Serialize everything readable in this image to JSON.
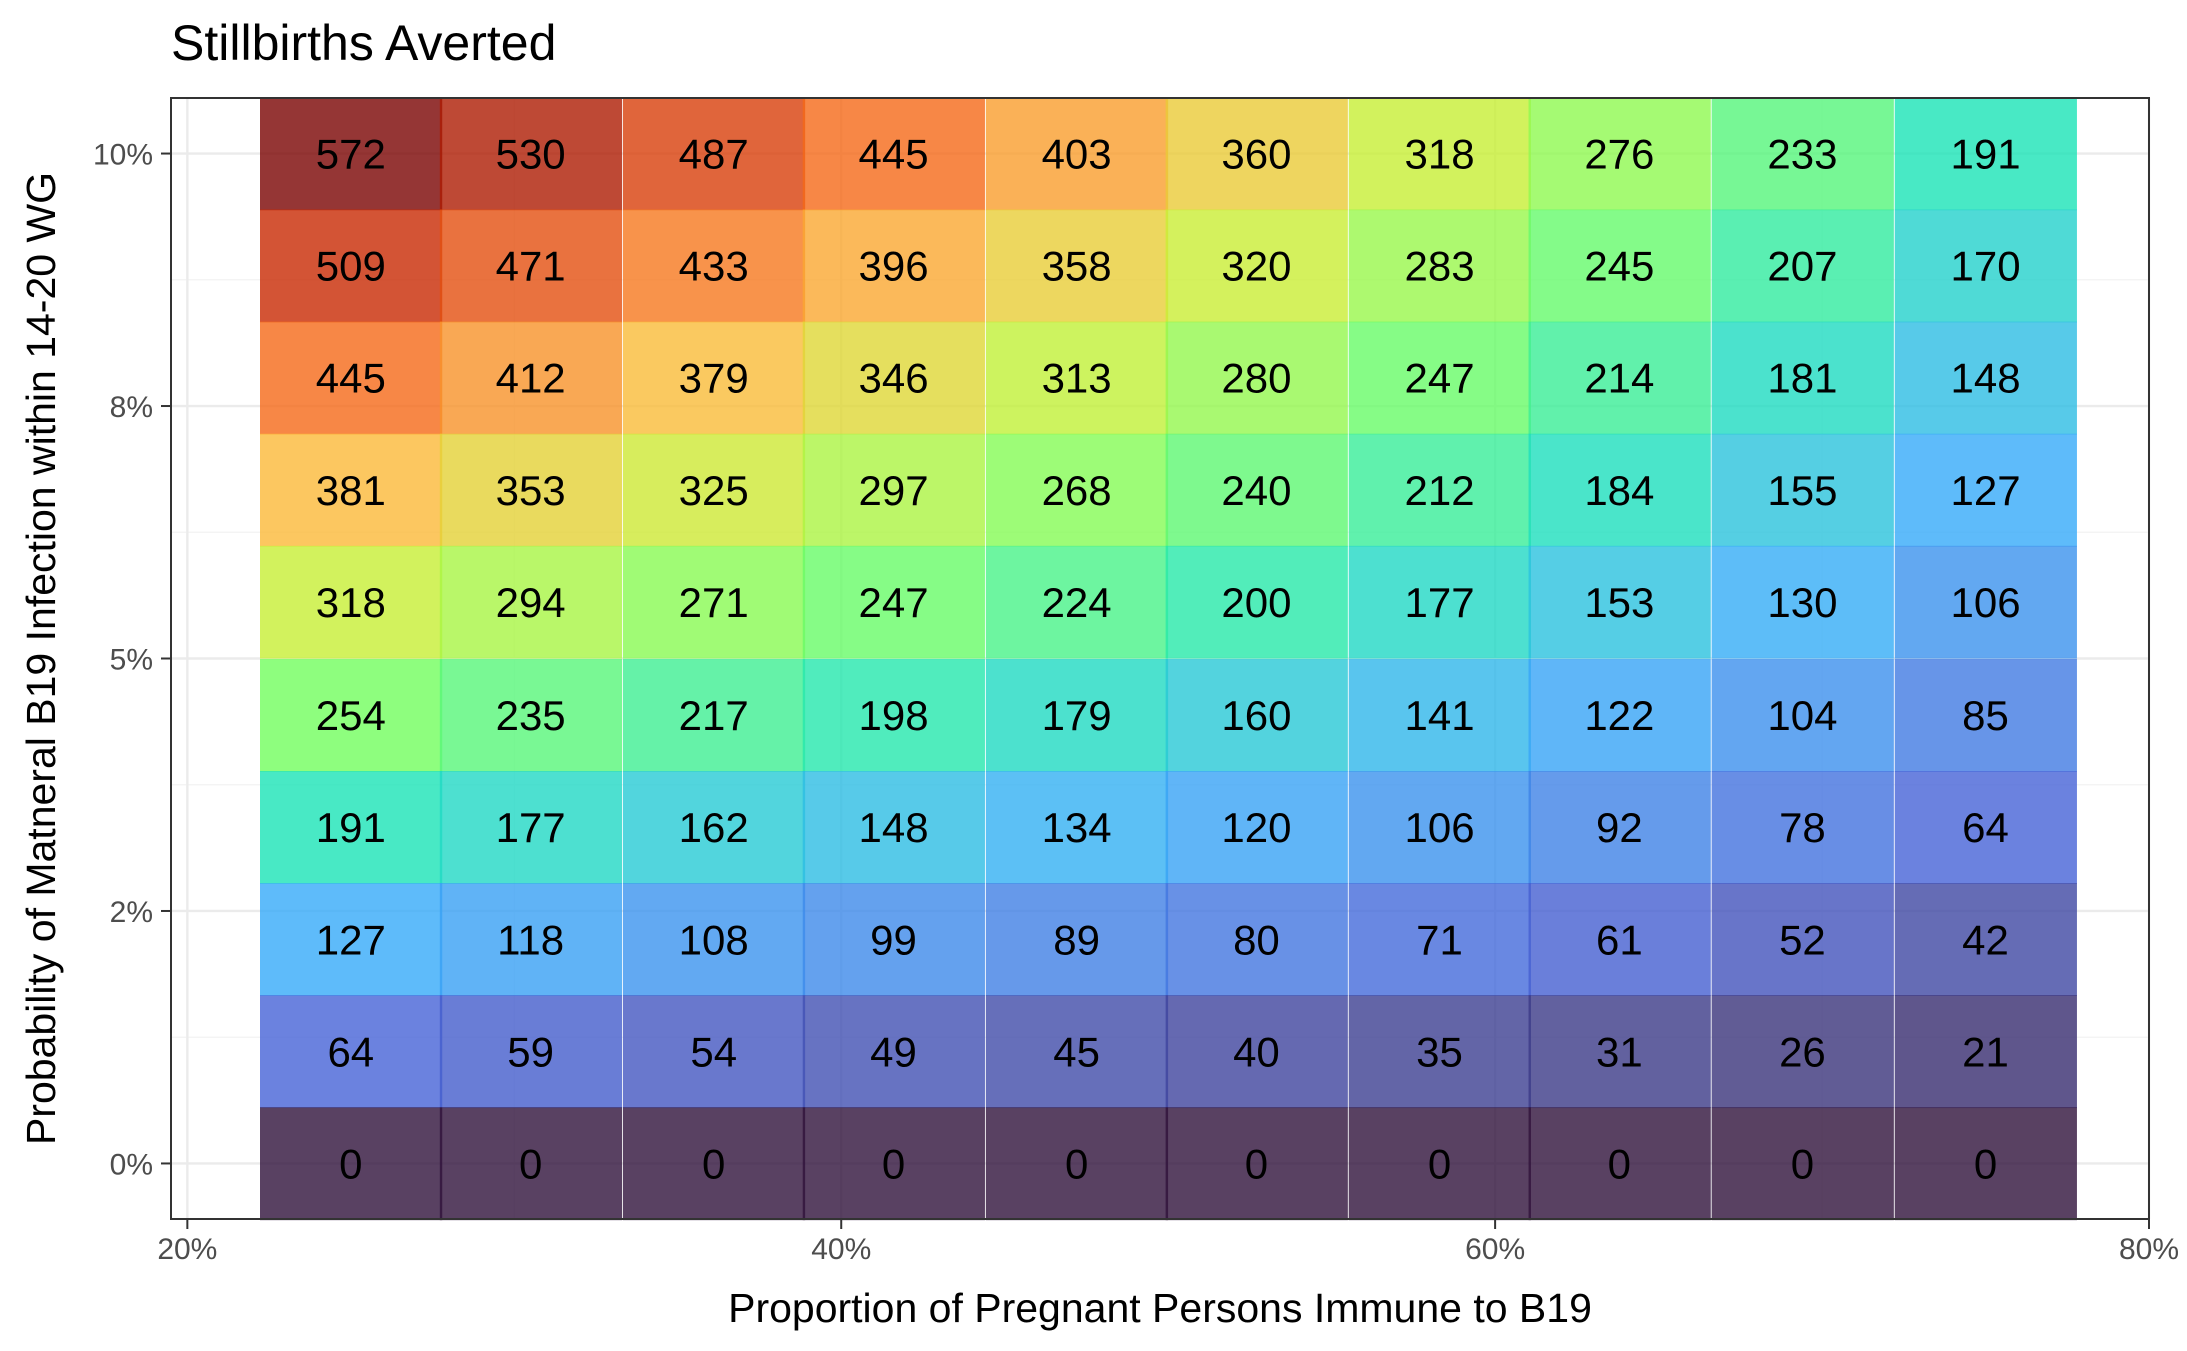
{
  "chart_data": {
    "type": "heatmap",
    "title": "Stillbirths Averted",
    "xlabel": "Proportion of Pregnant Persons Immune to B19",
    "ylabel": "Probability of Matneral B19 Infection within 14-20 WG",
    "x_tick_labels": [
      "20%",
      "40%",
      "60%",
      "80%"
    ],
    "x_ticks": [
      0.2,
      0.4,
      0.6,
      0.8
    ],
    "y_tick_labels": [
      "0%",
      "2%",
      "5%",
      "8%",
      "10%"
    ],
    "y_ticks": [
      0,
      0.025,
      0.05,
      0.075,
      0.1
    ],
    "xlim": [
      0.195,
      0.8
    ],
    "ylim": [
      -0.0055,
      0.1055
    ],
    "x": [
      0.25,
      0.305,
      0.361,
      0.416,
      0.472,
      0.527,
      0.583,
      0.638,
      0.694,
      0.75
    ],
    "y": [
      0.1,
      0.0889,
      0.0778,
      0.0667,
      0.0556,
      0.0444,
      0.0333,
      0.0222,
      0.0111,
      0
    ],
    "values": [
      [
        572,
        530,
        487,
        445,
        403,
        360,
        318,
        276,
        233,
        191
      ],
      [
        509,
        471,
        433,
        396,
        358,
        320,
        283,
        245,
        207,
        170
      ],
      [
        445,
        412,
        379,
        346,
        313,
        280,
        247,
        214,
        181,
        148
      ],
      [
        381,
        353,
        325,
        297,
        268,
        240,
        212,
        184,
        155,
        127
      ],
      [
        318,
        294,
        271,
        247,
        224,
        200,
        177,
        153,
        130,
        106
      ],
      [
        254,
        235,
        217,
        198,
        179,
        160,
        141,
        122,
        104,
        85
      ],
      [
        191,
        177,
        162,
        148,
        134,
        120,
        106,
        92,
        78,
        64
      ],
      [
        127,
        118,
        108,
        99,
        89,
        80,
        71,
        61,
        52,
        42
      ],
      [
        64,
        59,
        54,
        49,
        45,
        40,
        35,
        31,
        26,
        21
      ],
      [
        0,
        0,
        0,
        0,
        0,
        0,
        0,
        0,
        0,
        0
      ]
    ],
    "value_range": [
      0,
      572
    ],
    "colormap": "turbo",
    "colors": [
      "#30123b",
      "#4662d7",
      "#36aaf9",
      "#1ae4b6",
      "#72fe5e",
      "#c7ef34",
      "#fbb938",
      "#f56918",
      "#c92903",
      "#7a0403"
    ],
    "legend": "none",
    "grid": true
  }
}
